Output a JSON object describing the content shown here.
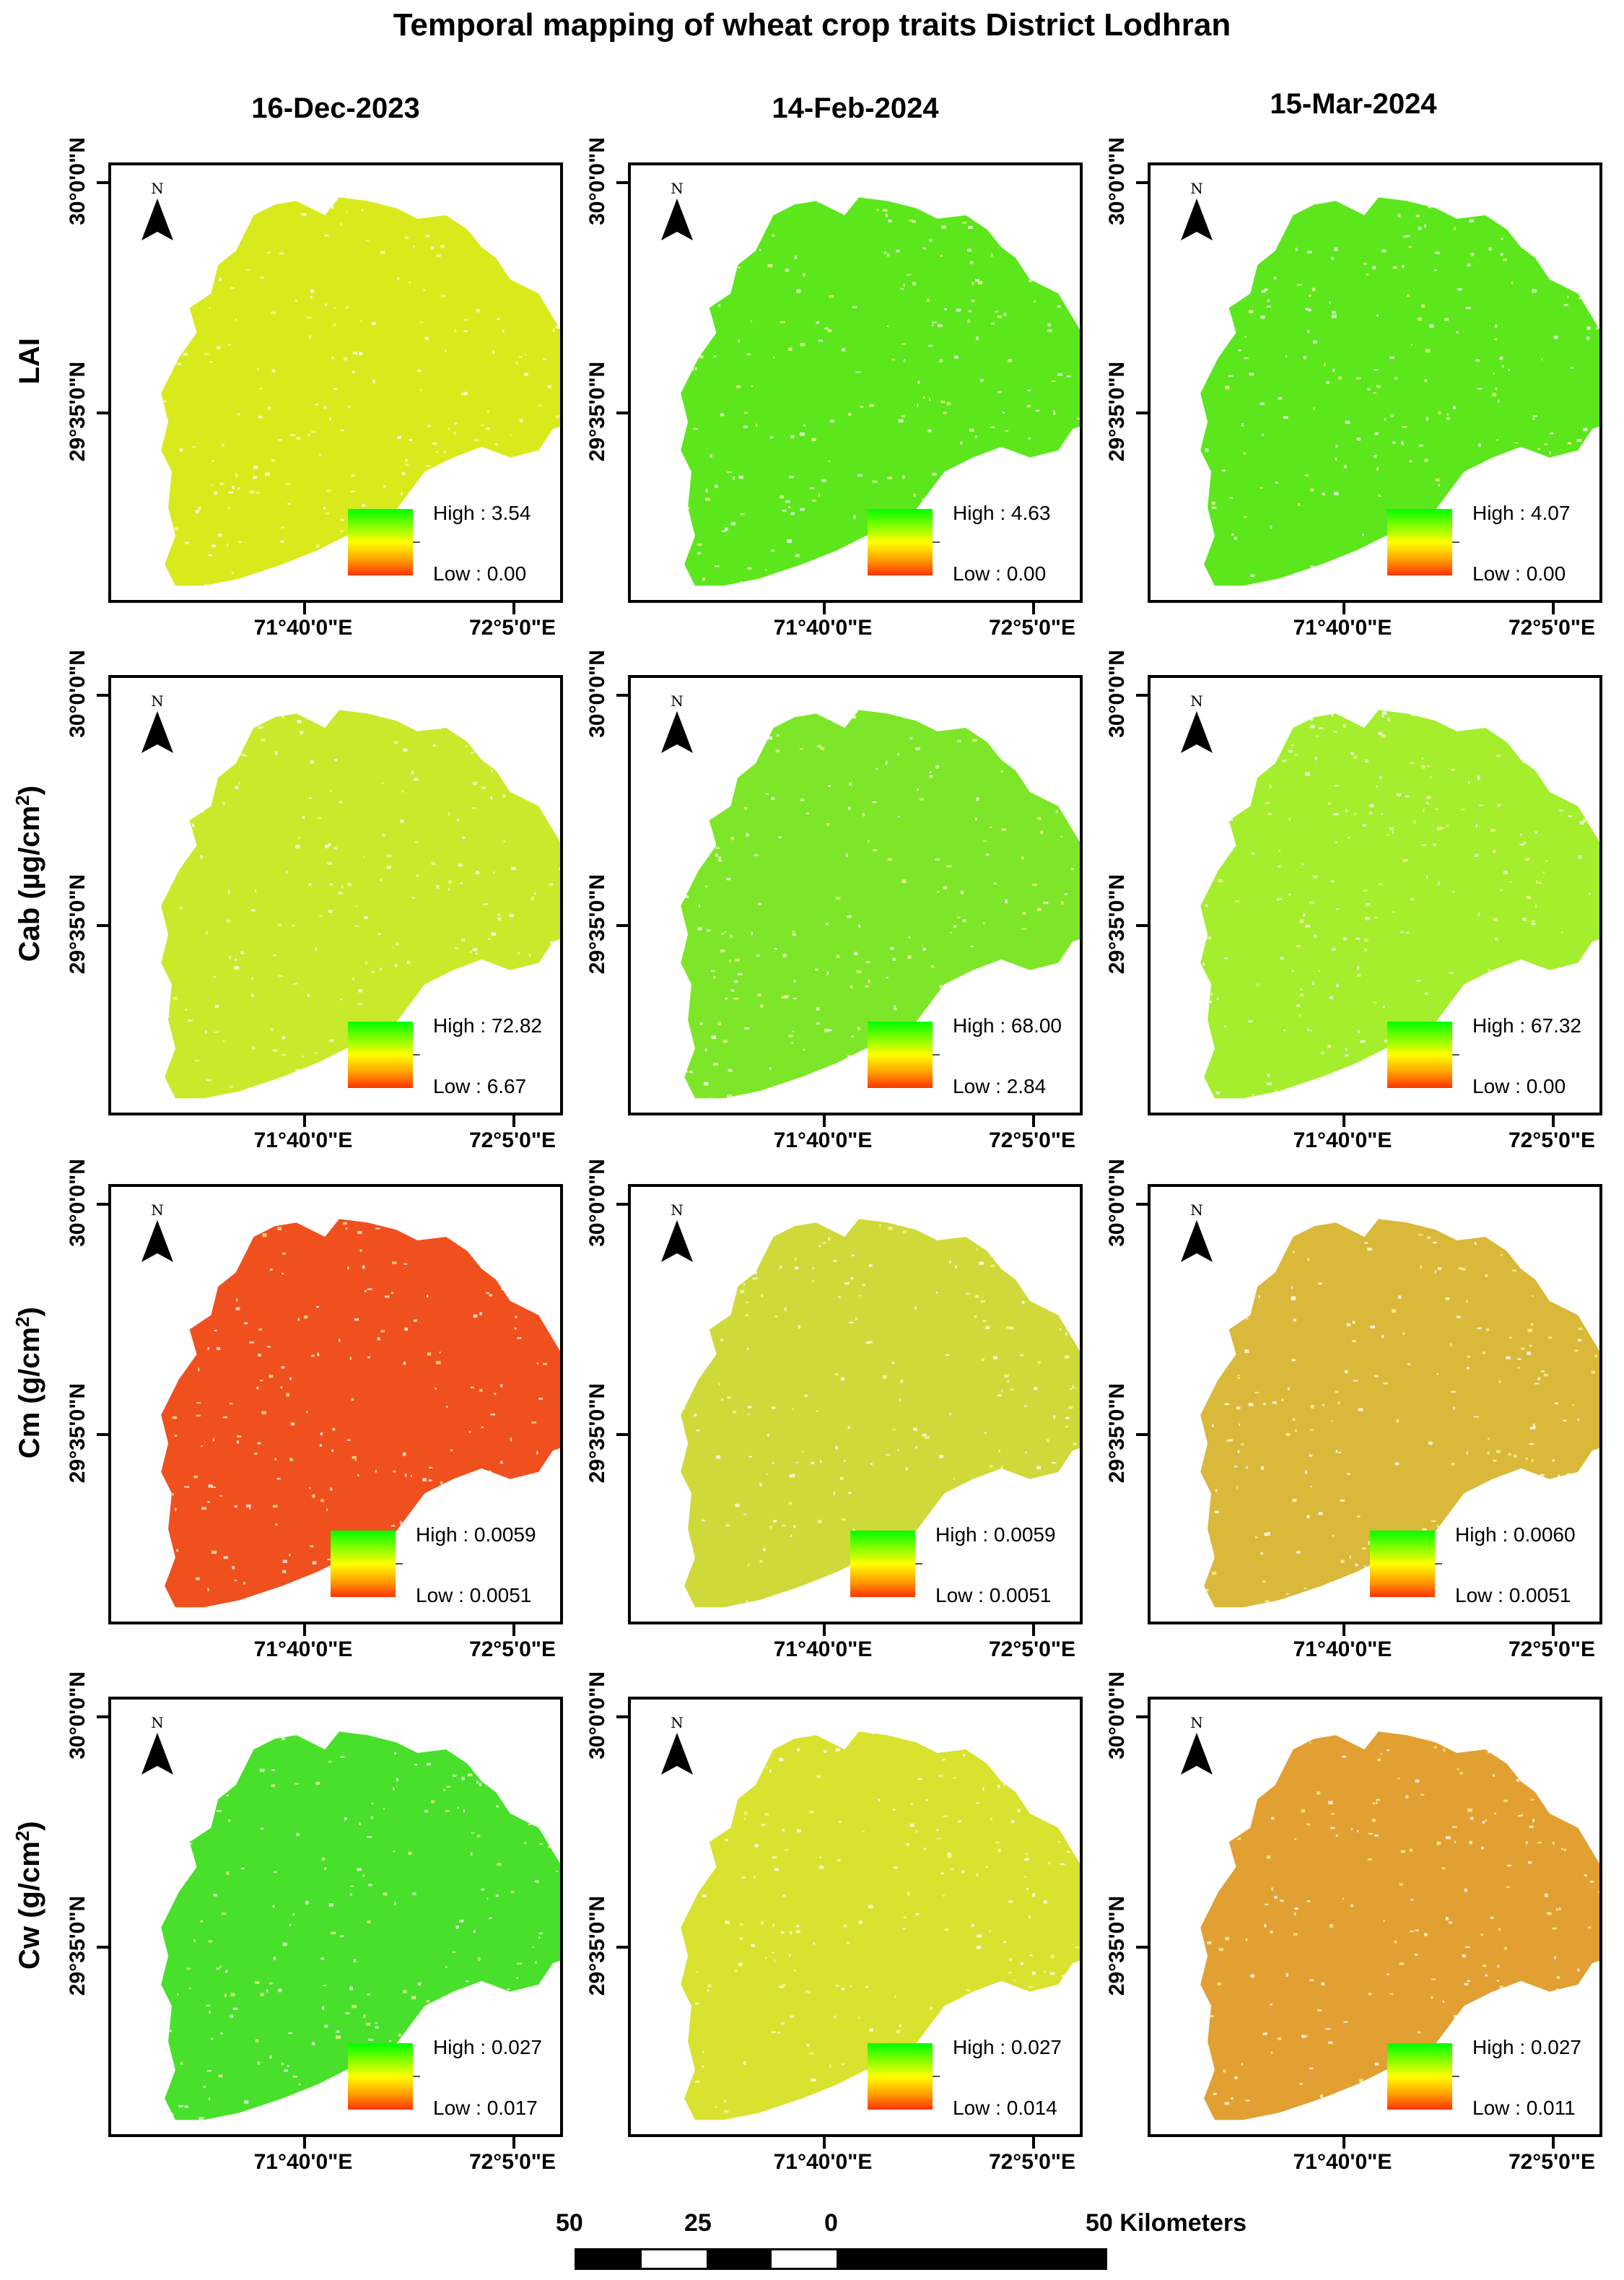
{
  "title": "Temporal mapping of wheat crop traits District Lodhran",
  "dates": [
    "16-Dec-2023",
    "14-Feb-2024",
    "15-Mar-2024"
  ],
  "traits": [
    {
      "name": "LAI",
      "unit": "",
      "sup": ""
    },
    {
      "name": "Cab (µg/cm",
      "unit": ")",
      "sup": "2"
    },
    {
      "name": "Cm (g/cm",
      "unit": ")",
      "sup": "2"
    },
    {
      "name": "Cw (g/cm",
      "unit": ")",
      "sup": "2"
    }
  ],
  "axes": {
    "lat_labels": [
      "30°0'0\"N",
      "29°35'0\"N"
    ],
    "lon_labels": [
      "71°40'0\"E",
      "72°5'0\"E"
    ]
  },
  "north_letter": "N",
  "legends": [
    [
      {
        "high": "High : 3.54",
        "low": "Low : 0.00"
      },
      {
        "high": "High : 4.63",
        "low": "Low : 0.00"
      },
      {
        "high": "High : 4.07",
        "low": "Low : 0.00"
      }
    ],
    [
      {
        "high": "High : 72.82",
        "low": "Low : 6.67"
      },
      {
        "high": "High : 68.00",
        "low": "Low : 2.84"
      },
      {
        "high": "High : 67.32",
        "low": "Low : 0.00"
      }
    ],
    [
      {
        "high": "High : 0.0059",
        "low": "Low : 0.0051"
      },
      {
        "high": "High : 0.0059",
        "low": "Low : 0.0051"
      },
      {
        "high": "High : 0.0060",
        "low": "Low : 0.0051"
      }
    ],
    [
      {
        "high": "High : 0.027",
        "low": "Low : 0.017"
      },
      {
        "high": "High : 0.027",
        "low": "Low : 0.014"
      },
      {
        "high": "High : 0.027",
        "low": "Low : 0.011"
      }
    ]
  ],
  "map_colors": [
    [
      "#d9ea1c",
      "#5ce61c",
      "#5ce61c"
    ],
    [
      "#c8ea2a",
      "#7ee628",
      "#a4ee2e"
    ],
    [
      "#f0501e",
      "#cfd93a",
      "#d9b83a"
    ],
    [
      "#48e02a",
      "#d9e22e",
      "#e2a032"
    ]
  ],
  "scale_bar": {
    "labels": [
      "50",
      "25",
      "0",
      "50 Kilometers"
    ]
  }
}
